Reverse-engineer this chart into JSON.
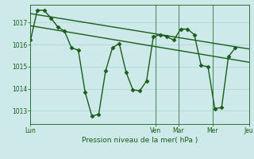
{
  "background_color": "#cee9e9",
  "grid_color": "#b0d8d8",
  "line_color": "#1a5c1a",
  "xlabel": "Pression niveau de la mer( hPa )",
  "ylim": [
    1012.4,
    1017.8
  ],
  "yticks": [
    1013,
    1014,
    1015,
    1016,
    1017
  ],
  "xlim": [
    0,
    192
  ],
  "xtick_positions": [
    0,
    110,
    130,
    160,
    192
  ],
  "xtick_labels": [
    "Lun",
    "Ven",
    "Mar",
    "Mer",
    "Jeu"
  ],
  "vline_positions": [
    110,
    130,
    160,
    192
  ],
  "line1_x": [
    0,
    6,
    12,
    18,
    24,
    30,
    36,
    42,
    48,
    54,
    60,
    66,
    72,
    78,
    84,
    90,
    96,
    102,
    108,
    114,
    120,
    126,
    132,
    138,
    144,
    150,
    156,
    162,
    168,
    174,
    180
  ],
  "line1_y": [
    1016.2,
    1017.55,
    1017.55,
    1017.2,
    1016.8,
    1016.6,
    1015.85,
    1015.75,
    1013.85,
    1012.75,
    1012.85,
    1014.8,
    1015.85,
    1016.05,
    1014.75,
    1013.95,
    1013.9,
    1014.35,
    1016.35,
    1016.45,
    1016.35,
    1016.2,
    1016.7,
    1016.7,
    1016.45,
    1015.05,
    1015.0,
    1013.1,
    1013.15,
    1015.45,
    1015.85
  ],
  "trend1_x": [
    0,
    192
  ],
  "trend1_y": [
    1017.4,
    1015.8
  ],
  "trend2_x": [
    0,
    192
  ],
  "trend2_y": [
    1016.85,
    1015.2
  ],
  "marker": "D",
  "marker_size": 2.5,
  "linewidth": 1.0
}
